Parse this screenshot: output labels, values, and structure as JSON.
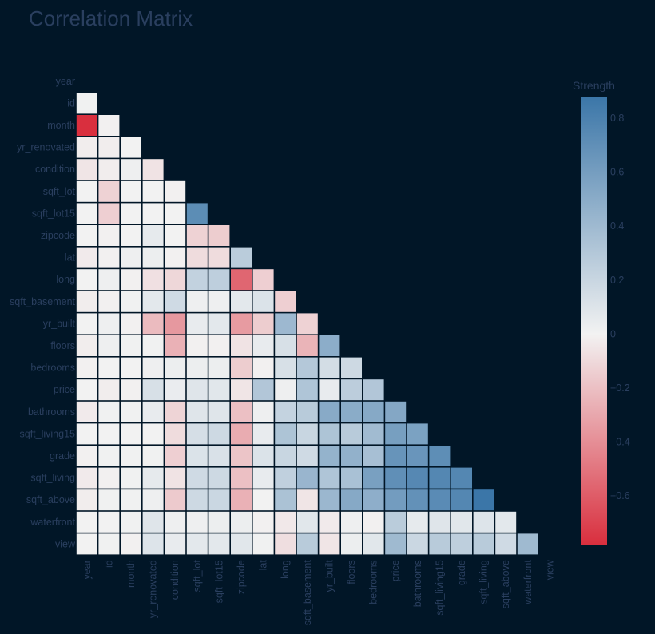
{
  "chart_data": {
    "type": "heatmap",
    "title": "Correlation Matrix",
    "variables": [
      "year",
      "id",
      "month",
      "yr_renovated",
      "condition",
      "sqft_lot",
      "sqft_lot15",
      "zipcode",
      "lat",
      "long",
      "sqft_basement",
      "yr_built",
      "floors",
      "bedrooms",
      "price",
      "bathrooms",
      "sqft_living15",
      "grade",
      "sqft_living",
      "sqft_above",
      "waterfront",
      "view"
    ],
    "x_ticks": [
      "year",
      "id",
      "month",
      "yr_renovated",
      "condition",
      "sqft_lot",
      "sqft_lot15",
      "zipcode",
      "lat",
      "long",
      "sqft_basement",
      "yr_built",
      "floors",
      "bedrooms",
      "price",
      "bathrooms",
      "sqft_living15",
      "grade",
      "sqft_living",
      "sqft_above",
      "waterfront",
      "view"
    ],
    "y_ticks": [
      "year",
      "id",
      "month",
      "yr_renovated",
      "condition",
      "sqft_lot",
      "sqft_lot15",
      "zipcode",
      "lat",
      "long",
      "sqft_basement",
      "yr_built",
      "floors",
      "bedrooms",
      "price",
      "bathrooms",
      "sqft_living15",
      "grade",
      "sqft_living",
      "sqft_above",
      "waterfront",
      "view"
    ],
    "lower_triangle": [
      [],
      [
        0.01
      ],
      [
        -0.78,
        -0.01
      ],
      [
        -0.02,
        -0.02,
        0.0
      ],
      [
        -0.05,
        -0.02,
        0.02,
        -0.06
      ],
      [
        0.0,
        -0.13,
        -0.0,
        -0.0,
        -0.01
      ],
      [
        0.0,
        -0.14,
        -0.0,
        -0.0,
        -0.0,
        0.72
      ],
      [
        0.0,
        -0.01,
        0.0,
        0.06,
        0.0,
        -0.13,
        -0.15
      ],
      [
        -0.03,
        -0.01,
        0.02,
        0.03,
        -0.01,
        -0.09,
        -0.09,
        0.27
      ],
      [
        0.0,
        0.02,
        -0.01,
        -0.07,
        -0.11,
        0.23,
        0.25,
        -0.56,
        -0.14
      ],
      [
        -0.02,
        -0.01,
        0.01,
        0.07,
        0.17,
        0.02,
        0.02,
        0.07,
        0.11,
        -0.14
      ],
      [
        0.0,
        0.02,
        -0.01,
        -0.22,
        -0.36,
        0.05,
        0.07,
        -0.35,
        -0.15,
        0.41,
        -0.13
      ],
      [
        -0.02,
        0.02,
        0.01,
        0.01,
        -0.26,
        -0.01,
        -0.01,
        -0.06,
        0.05,
        0.13,
        -0.25,
        0.49
      ],
      [
        -0.01,
        0.0,
        -0.0,
        0.02,
        0.03,
        0.03,
        0.03,
        -0.15,
        -0.01,
        0.13,
        0.3,
        0.15,
        0.18
      ],
      [
        0.0,
        -0.02,
        -0.01,
        0.13,
        0.04,
        0.09,
        0.08,
        -0.05,
        0.31,
        0.02,
        0.32,
        0.05,
        0.26,
        0.31
      ],
      [
        -0.03,
        0.01,
        0.01,
        0.05,
        -0.12,
        0.09,
        0.09,
        -0.2,
        0.02,
        0.22,
        0.28,
        0.51,
        0.5,
        0.52,
        0.53
      ],
      [
        -0.0,
        0.0,
        -0.0,
        -0.0,
        -0.09,
        0.14,
        0.18,
        -0.28,
        0.05,
        0.33,
        0.2,
        0.33,
        0.28,
        0.39,
        0.59,
        0.57
      ],
      [
        -0.01,
        0.01,
        0.01,
        0.01,
        -0.14,
        0.11,
        0.12,
        -0.18,
        0.11,
        0.2,
        0.17,
        0.45,
        0.46,
        0.36,
        0.67,
        0.66,
        0.71
      ],
      [
        -0.03,
        -0.01,
        0.01,
        0.06,
        -0.06,
        0.17,
        0.18,
        -0.2,
        0.05,
        0.24,
        0.43,
        0.32,
        0.35,
        0.58,
        0.7,
        0.75,
        0.76,
        0.76
      ],
      [
        -0.02,
        0.01,
        0.01,
        0.02,
        -0.16,
        0.18,
        0.19,
        -0.26,
        -0.0,
        0.34,
        -0.05,
        0.42,
        0.52,
        0.48,
        0.61,
        0.69,
        0.73,
        0.76,
        0.88
      ],
      [
        -0.0,
        -0.0,
        0.01,
        0.09,
        0.02,
        0.02,
        0.03,
        0.03,
        -0.01,
        -0.04,
        0.08,
        -0.03,
        0.02,
        -0.01,
        0.27,
        0.06,
        0.09,
        0.08,
        0.1,
        0.07
      ],
      [
        0.0,
        0.01,
        -0.01,
        0.1,
        0.05,
        0.07,
        0.07,
        0.08,
        0.01,
        -0.08,
        0.28,
        -0.05,
        0.03,
        0.08,
        0.4,
        0.19,
        0.28,
        0.25,
        0.28,
        0.17,
        0.4
      ]
    ],
    "colorbar": {
      "title": "Strength",
      "min": -0.78,
      "max": 0.88,
      "ticks": [
        0.8,
        0.6,
        0.4,
        0.2,
        0,
        -0.2,
        -0.4,
        -0.6
      ],
      "tick_labels": [
        "0.8",
        "0.6",
        "0.4",
        "0.2",
        "0",
        "−0.2",
        "−0.4",
        "−0.6"
      ],
      "colorscale": [
        "#d92f3e",
        "#f2f2f2",
        "#3b76a8"
      ]
    }
  }
}
